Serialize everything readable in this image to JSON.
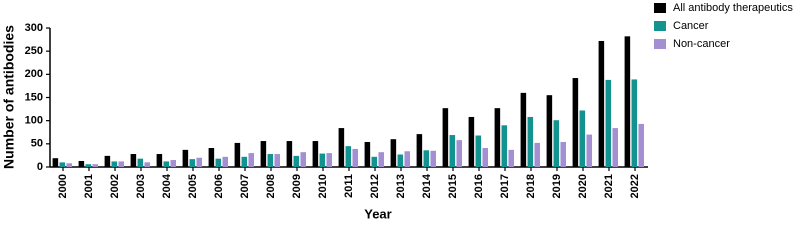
{
  "chart_data": {
    "type": "bar",
    "x_label": "Year",
    "y_label": "Number of antibodies",
    "categories": [
      "2000",
      "2001",
      "2002",
      "2003",
      "2004",
      "2005",
      "2006",
      "2007",
      "2008",
      "2009",
      "2010",
      "2011",
      "2012",
      "2013",
      "2014",
      "2015",
      "2016",
      "2017",
      "2018",
      "2019",
      "2020",
      "2021",
      "2022"
    ],
    "series": [
      {
        "name": "All antibody therapeutics",
        "color": "#000000",
        "values": [
          19,
          13,
          24,
          28,
          28,
          37,
          41,
          52,
          56,
          56,
          56,
          84,
          54,
          60,
          71,
          127,
          108,
          127,
          160,
          155,
          192,
          272,
          282
        ]
      },
      {
        "name": "Cancer",
        "color": "#13938f",
        "values": [
          10,
          6,
          12,
          18,
          12,
          17,
          18,
          22,
          28,
          24,
          29,
          45,
          22,
          27,
          36,
          69,
          68,
          90,
          108,
          101,
          122,
          188,
          189
        ]
      },
      {
        "name": "Non-cancer",
        "color": "#a48fd3",
        "values": [
          8,
          6,
          12,
          10,
          15,
          20,
          22,
          30,
          28,
          32,
          30,
          39,
          32,
          34,
          35,
          58,
          41,
          37,
          52,
          54,
          70,
          84,
          93
        ]
      }
    ],
    "ylim": [
      0,
      300
    ],
    "yticks": [
      0,
      50,
      100,
      150,
      200,
      250,
      300
    ]
  }
}
